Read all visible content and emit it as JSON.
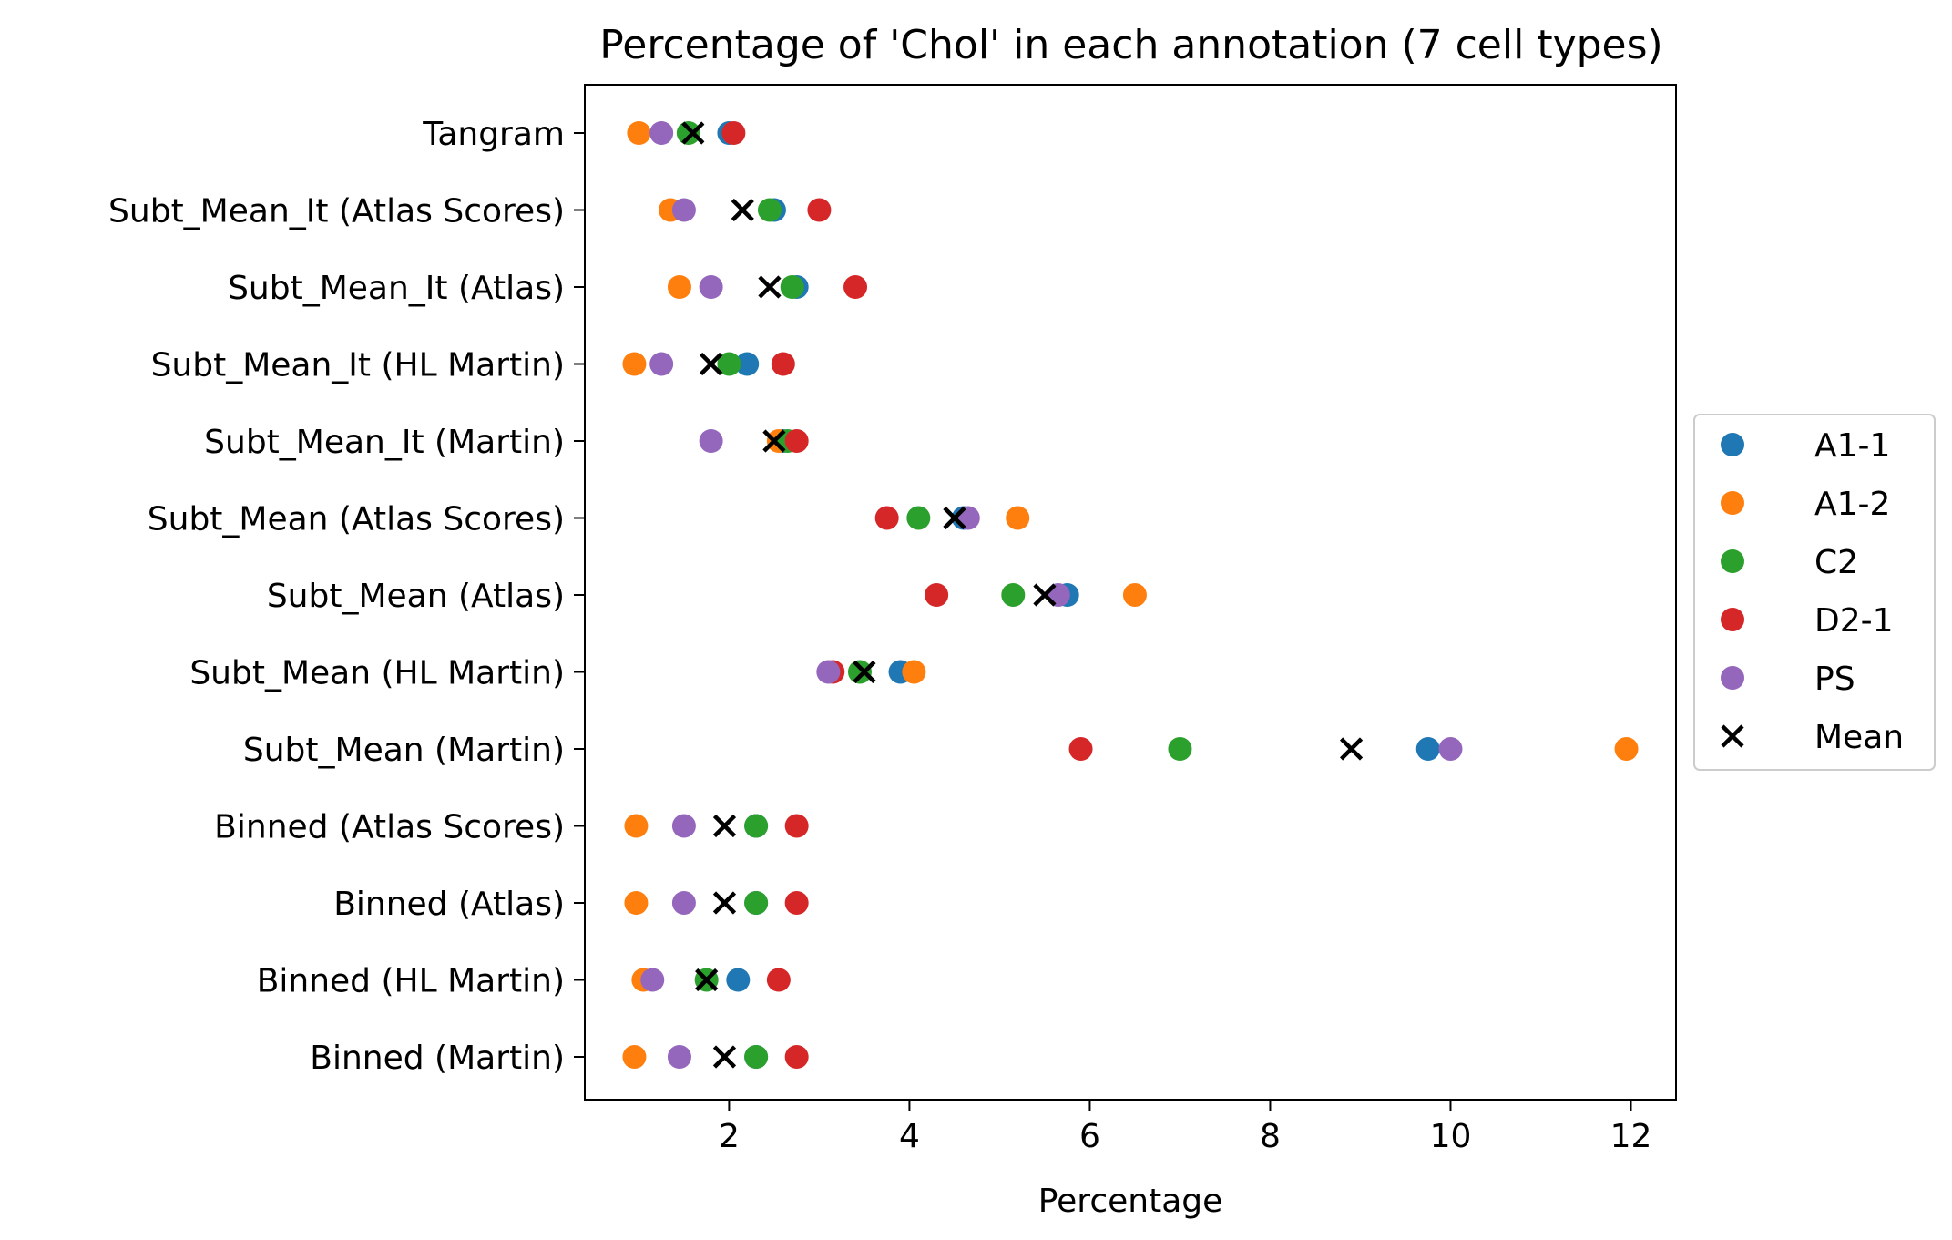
{
  "chart_data": {
    "type": "scatter",
    "title": "Percentage of 'Chol' in each annotation (7 cell types)",
    "xlabel": "Percentage",
    "ylabel": "",
    "xlim": [
      0.4,
      12.5
    ],
    "xticks": [
      2,
      4,
      6,
      8,
      10,
      12
    ],
    "categories": [
      "Tangram",
      "Subt_Mean_It (Atlas Scores)",
      "Subt_Mean_It (Atlas)",
      "Subt_Mean_It (HL Martin)",
      "Subt_Mean_It (Martin)",
      "Subt_Mean (Atlas Scores)",
      "Subt_Mean (Atlas)",
      "Subt_Mean (HL Martin)",
      "Subt_Mean (Martin)",
      "Binned (Atlas Scores)",
      "Binned (Atlas)",
      "Binned (HL Martin)",
      "Binned (Martin)"
    ],
    "series": [
      {
        "name": "A1-1",
        "color": "#1f77b4",
        "values": [
          2.0,
          2.5,
          2.75,
          2.2,
          2.6,
          4.6,
          5.75,
          3.9,
          9.75,
          2.3,
          2.3,
          2.1,
          2.3
        ]
      },
      {
        "name": "A1-2",
        "color": "#ff7f0e",
        "values": [
          1.0,
          1.35,
          1.45,
          0.95,
          2.55,
          5.2,
          6.5,
          4.05,
          11.95,
          0.97,
          0.97,
          1.05,
          0.95
        ]
      },
      {
        "name": "C2",
        "color": "#2ca02c",
        "values": [
          1.55,
          2.45,
          2.7,
          2.0,
          2.65,
          4.1,
          5.15,
          3.45,
          7.0,
          2.3,
          2.3,
          1.75,
          2.3
        ]
      },
      {
        "name": "D2-1",
        "color": "#d62728",
        "values": [
          2.05,
          3.0,
          3.4,
          2.6,
          2.75,
          3.75,
          4.3,
          3.15,
          5.9,
          2.75,
          2.75,
          2.55,
          2.75
        ]
      },
      {
        "name": "PS",
        "color": "#9467bd",
        "values": [
          1.25,
          1.5,
          1.8,
          1.25,
          1.8,
          4.65,
          5.65,
          3.1,
          10.0,
          1.5,
          1.5,
          1.15,
          1.45
        ]
      }
    ],
    "mean": {
      "name": "Mean",
      "color": "#000000",
      "values": [
        1.6,
        2.15,
        2.45,
        1.8,
        2.5,
        4.5,
        5.5,
        3.5,
        8.9,
        1.95,
        1.95,
        1.75,
        1.95
      ]
    },
    "legend_position": "right-center",
    "grid": false
  }
}
